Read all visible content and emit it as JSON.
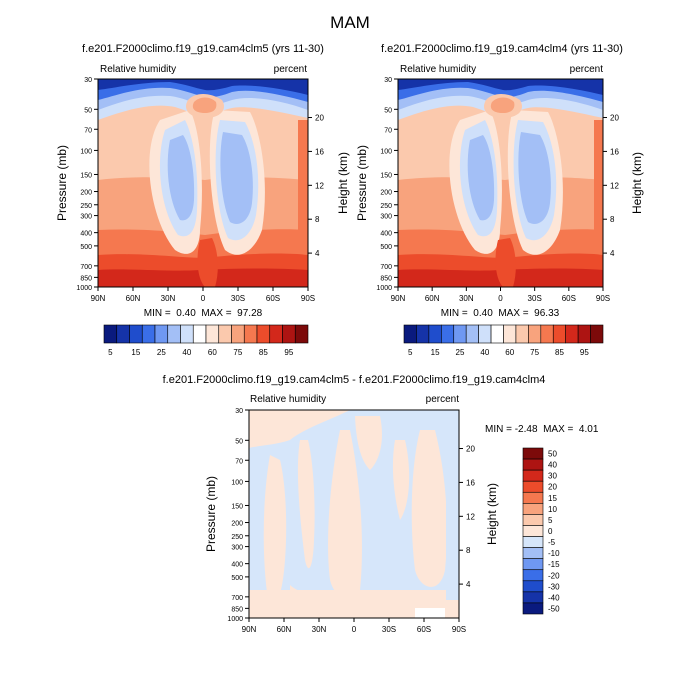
{
  "figure_title": "MAM",
  "chart_data": [
    {
      "type": "heatmap",
      "id": "panel-1",
      "title": "f.e201.F2000climo.f19_g19.cam4clm5 (yrs 11-30)",
      "left_label": "Relative humidity",
      "right_label": "percent",
      "ylabel": "Pressure (mb)",
      "y2label": "Height (km)",
      "min_max": "MIN =  0.40  MAX =  97.28",
      "x_ticks": [
        "90N",
        "60N",
        "30N",
        "0",
        "30S",
        "60S",
        "90S"
      ],
      "pressure_ticks": [
        "30",
        "50",
        "70",
        "100",
        "150",
        "200",
        "250",
        "300",
        "400",
        "500",
        "700",
        "850",
        "1000"
      ],
      "height_ticks": [
        "20",
        "16",
        "12",
        "8",
        "4"
      ],
      "colorbar": {
        "labels": [
          "5",
          "15",
          "25",
          "40",
          "60",
          "75",
          "85",
          "95"
        ],
        "colors": [
          "#0a1a7e",
          "#1533a8",
          "#1f4dcc",
          "#3a6ee8",
          "#6f98f2",
          "#a3bff6",
          "#cfe0fa",
          "#ffffff",
          "#fde6d8",
          "#fbc9ad",
          "#f8a37d",
          "#f5784f",
          "#ec4c2b",
          "#d3281b",
          "#ad1412",
          "#7c0a0a"
        ]
      }
    },
    {
      "type": "heatmap",
      "id": "panel-2",
      "title": "f.e201.F2000climo.f19_g19.cam4clm4 (yrs 11-30)",
      "left_label": "Relative humidity",
      "right_label": "percent",
      "ylabel": "Pressure (mb)",
      "y2label": "Height (km)",
      "min_max": "MIN =  0.40  MAX =  96.33",
      "x_ticks": [
        "90N",
        "60N",
        "30N",
        "0",
        "30S",
        "60S",
        "90S"
      ],
      "pressure_ticks": [
        "30",
        "50",
        "70",
        "100",
        "150",
        "200",
        "250",
        "300",
        "400",
        "500",
        "700",
        "850",
        "1000"
      ],
      "height_ticks": [
        "20",
        "16",
        "12",
        "8",
        "4"
      ],
      "colorbar": {
        "labels": [
          "5",
          "15",
          "25",
          "40",
          "60",
          "75",
          "85",
          "95"
        ],
        "colors": [
          "#0a1a7e",
          "#1533a8",
          "#1f4dcc",
          "#3a6ee8",
          "#6f98f2",
          "#a3bff6",
          "#cfe0fa",
          "#ffffff",
          "#fde6d8",
          "#fbc9ad",
          "#f8a37d",
          "#f5784f",
          "#ec4c2b",
          "#d3281b",
          "#ad1412",
          "#7c0a0a"
        ]
      }
    },
    {
      "type": "heatmap",
      "id": "panel-diff",
      "title": "f.e201.F2000climo.f19_g19.cam4clm5 - f.e201.F2000climo.f19_g19.cam4clm4",
      "left_label": "Relative humidity",
      "right_label": "percent",
      "ylabel": "Pressure (mb)",
      "y2label": "Height (km)",
      "min_max": "MIN = -2.48  MAX =  4.01",
      "x_ticks": [
        "90N",
        "60N",
        "30N",
        "0",
        "30S",
        "60S",
        "90S"
      ],
      "pressure_ticks": [
        "30",
        "50",
        "70",
        "100",
        "150",
        "200",
        "250",
        "300",
        "400",
        "500",
        "700",
        "850",
        "1000"
      ],
      "height_ticks": [
        "20",
        "16",
        "12",
        "8",
        "4"
      ],
      "colorbar": {
        "labels": [
          "50",
          "40",
          "30",
          "20",
          "15",
          "10",
          "5",
          "0",
          "-5",
          "-10",
          "-15",
          "-20",
          "-30",
          "-40",
          "-50"
        ],
        "colors": [
          "#7c0a0a",
          "#ad1412",
          "#d3281b",
          "#ec4c2b",
          "#f5784f",
          "#f8a37d",
          "#fbc9ad",
          "#fde6d8",
          "#d6e6fa",
          "#a3bff6",
          "#6f98f2",
          "#3a6ee8",
          "#1f4dcc",
          "#1533a8",
          "#0a1a7e"
        ]
      }
    }
  ]
}
